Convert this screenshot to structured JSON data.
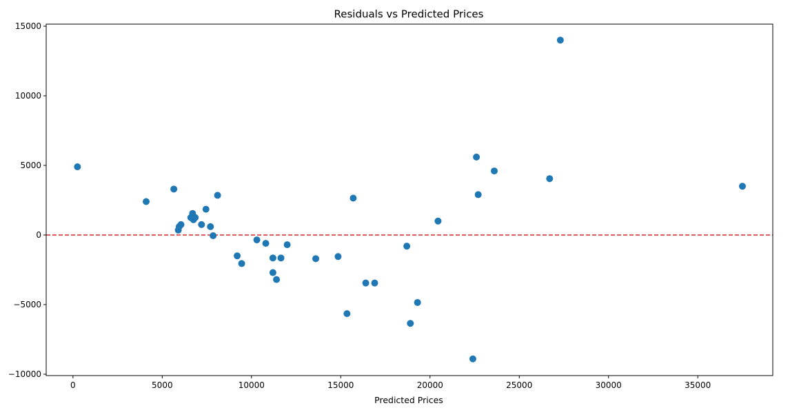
{
  "chart_data": {
    "type": "scatter",
    "title": "Residuals vs Predicted Prices",
    "xlabel": "Predicted Prices",
    "ylabel": "",
    "xlim": [
      -1500,
      39200
    ],
    "ylim": [
      -10100,
      15150
    ],
    "x_ticks": [
      0,
      5000,
      10000,
      15000,
      20000,
      25000,
      30000,
      35000
    ],
    "y_ticks": [
      -10000,
      -5000,
      0,
      5000,
      10000,
      15000
    ],
    "x_tick_labels": [
      "0",
      "5000",
      "10000",
      "15000",
      "20000",
      "25000",
      "30000",
      "35000"
    ],
    "y_tick_labels": [
      "−10000",
      "−5000",
      "0",
      "5000",
      "10000",
      "15000"
    ],
    "grid": false,
    "legend": "none",
    "marker_color": "#1f77b4",
    "reference_line": {
      "y": 0,
      "style": "dashed",
      "color": "#d62728"
    },
    "points": [
      {
        "x": 250,
        "y": 4900
      },
      {
        "x": 4100,
        "y": 2400
      },
      {
        "x": 5650,
        "y": 3300
      },
      {
        "x": 5900,
        "y": 350
      },
      {
        "x": 5950,
        "y": 600
      },
      {
        "x": 6050,
        "y": 750
      },
      {
        "x": 6600,
        "y": 1250
      },
      {
        "x": 6700,
        "y": 1550
      },
      {
        "x": 6750,
        "y": 1100
      },
      {
        "x": 6850,
        "y": 1250
      },
      {
        "x": 7200,
        "y": 750
      },
      {
        "x": 7450,
        "y": 1850
      },
      {
        "x": 7700,
        "y": 600
      },
      {
        "x": 7850,
        "y": -50
      },
      {
        "x": 8100,
        "y": 2850
      },
      {
        "x": 9200,
        "y": -1500
      },
      {
        "x": 9450,
        "y": -2050
      },
      {
        "x": 10300,
        "y": -350
      },
      {
        "x": 10800,
        "y": -600
      },
      {
        "x": 11200,
        "y": -1650
      },
      {
        "x": 11200,
        "y": -2700
      },
      {
        "x": 11400,
        "y": -3200
      },
      {
        "x": 11650,
        "y": -1650
      },
      {
        "x": 12000,
        "y": -700
      },
      {
        "x": 13600,
        "y": -1700
      },
      {
        "x": 14850,
        "y": -1550
      },
      {
        "x": 15350,
        "y": -5650
      },
      {
        "x": 15700,
        "y": 2650
      },
      {
        "x": 16400,
        "y": -3450
      },
      {
        "x": 16900,
        "y": -3450
      },
      {
        "x": 18700,
        "y": -800
      },
      {
        "x": 18900,
        "y": -6350
      },
      {
        "x": 19300,
        "y": -4850
      },
      {
        "x": 20450,
        "y": 1000
      },
      {
        "x": 22400,
        "y": -8900
      },
      {
        "x": 22600,
        "y": 5600
      },
      {
        "x": 22700,
        "y": 2900
      },
      {
        "x": 23600,
        "y": 4600
      },
      {
        "x": 26700,
        "y": 4050
      },
      {
        "x": 27300,
        "y": 14000
      },
      {
        "x": 37500,
        "y": 3500
      }
    ]
  }
}
